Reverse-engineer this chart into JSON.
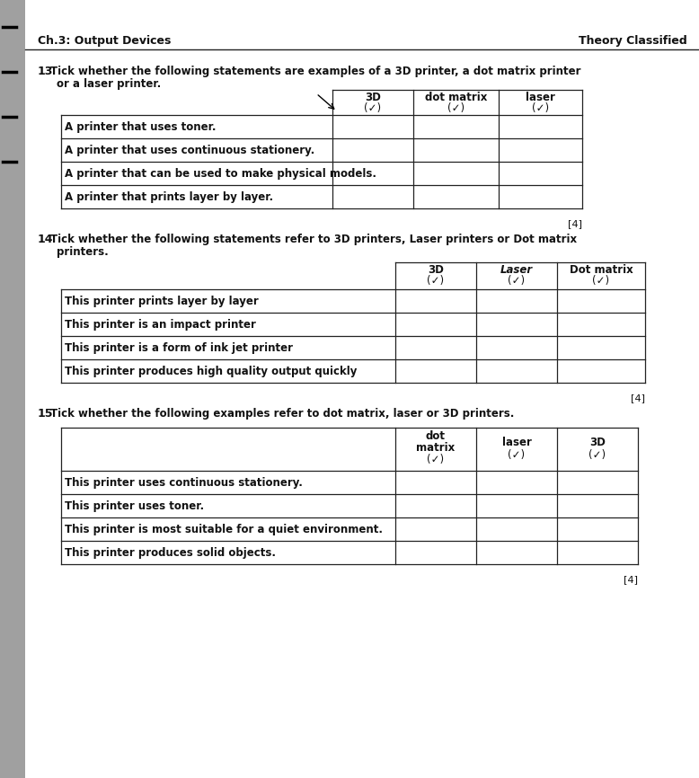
{
  "bg_color": "#c8c8c8",
  "page_color": "#f5f5f5",
  "left_strip_color": "#a0a0a0",
  "header_left": "Ch.3: Output Devices",
  "header_right": "Theory Classified",
  "q13_num": "13",
  "q13_text": " Tick whether the following statements are examples of a 3D printer, a dot matrix printer\n    or a laser printer.",
  "q13_cols_line1": [
    "3D",
    "dot matrix",
    "laser"
  ],
  "q13_cols_line2": [
    "(✓)",
    "(✓)",
    "(✓)"
  ],
  "q13_rows": [
    "A printer that uses toner.",
    "A printer that uses continuous stationery.",
    "A printer that can be used to make physical models.",
    "A printer that prints layer by layer."
  ],
  "q14_num": "14",
  "q14_text": " Tick whether the following statements refer to 3D printers, Laser printers or Dot matrix\n    printers.",
  "q14_cols_line1": [
    "3D",
    "Laser",
    "Dot matrix"
  ],
  "q14_cols_line2": [
    "(✓)",
    "(✓)",
    "(✓)"
  ],
  "q14_col1_italic": false,
  "q14_rows": [
    "This printer prints layer by layer",
    "This printer is an impact printer",
    "This printer is a form of ink jet printer",
    "This printer produces high quality output quickly"
  ],
  "q15_num": "15",
  "q15_text": " Tick whether the following examples refer to dot matrix, laser or 3D printers.",
  "q15_cols_line1": [
    "dot",
    "laser",
    "3D"
  ],
  "q15_cols_line2": [
    "matrix",
    "(✓)",
    "(✓)"
  ],
  "q15_cols_line3": [
    "(✓)",
    "",
    ""
  ],
  "q15_rows": [
    "This printer uses continuous stationery.",
    "This printer uses toner.",
    "This printer is most suitable for a quiet environment.",
    "This printer produces solid objects."
  ],
  "marks": "[4]",
  "text_color": "#111111",
  "line_color": "#222222",
  "mark_color": "#111111"
}
